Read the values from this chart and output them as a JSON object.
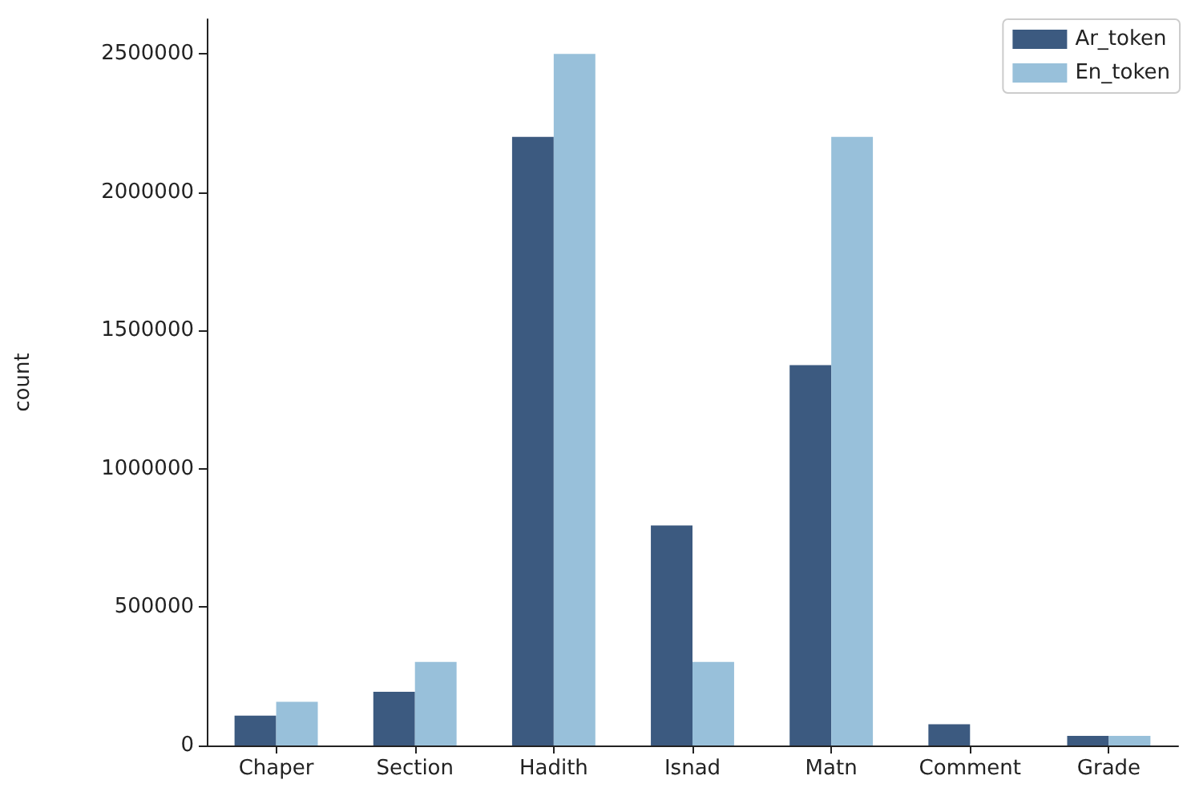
{
  "chart_data": {
    "type": "bar",
    "ylabel": "count",
    "categories": [
      "Chaper",
      "Section",
      "Hadith",
      "Isnad",
      "Matn",
      "Comment",
      "Grade"
    ],
    "series": [
      {
        "name": "Ar_token",
        "color": "#3c5a80",
        "values": [
          108000,
          194000,
          2200000,
          795000,
          1375000,
          77000,
          35000
        ]
      },
      {
        "name": "En_token",
        "color": "#98c0da",
        "values": [
          158000,
          302000,
          2500000,
          302000,
          2200000,
          null,
          35000
        ]
      }
    ],
    "ylim": [
      0,
      2625000
    ],
    "yticks": [
      0,
      500000,
      1000000,
      1500000,
      2000000,
      2500000
    ],
    "grid": false,
    "legend": "top right"
  }
}
